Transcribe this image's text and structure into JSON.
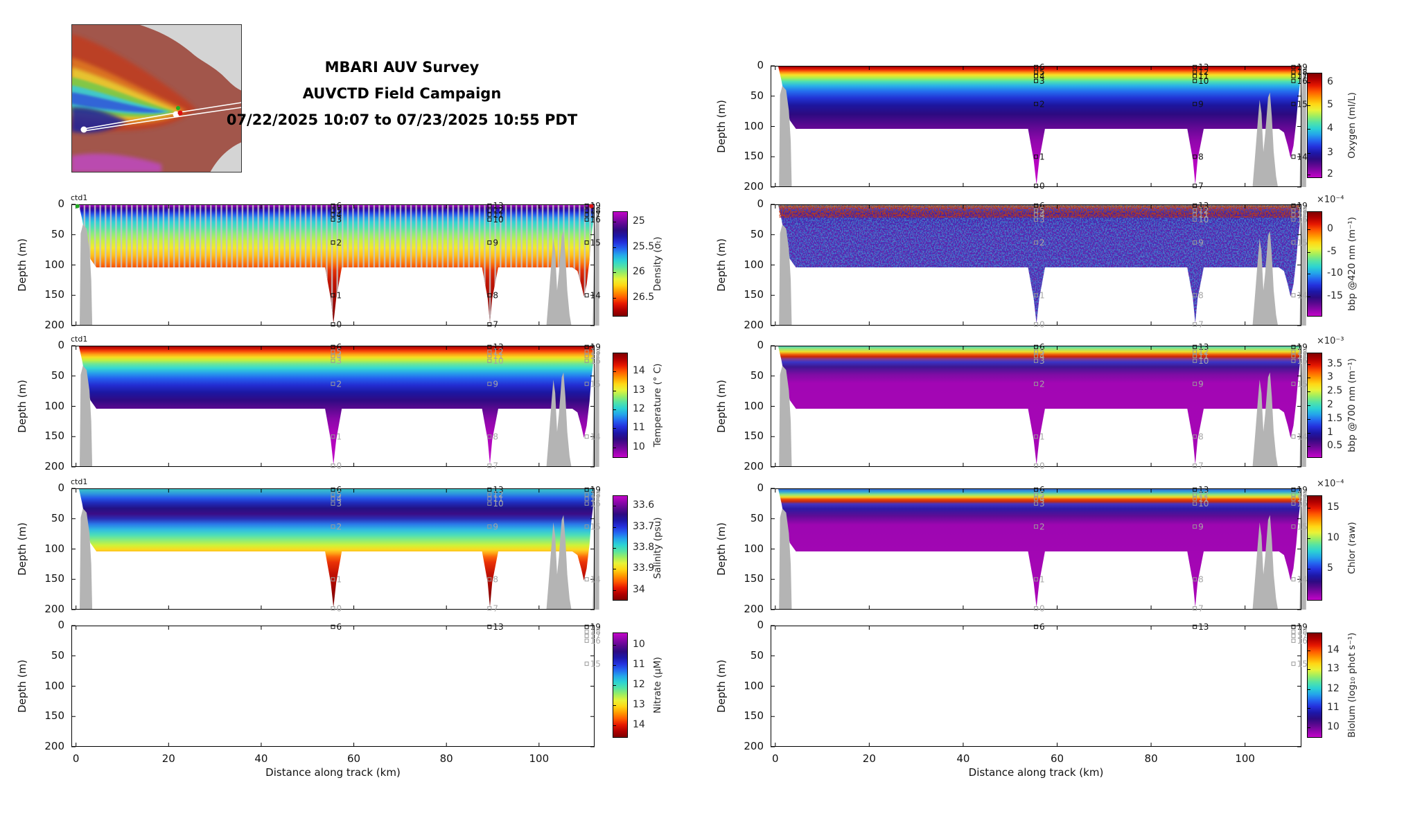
{
  "header": {
    "line1": "MBARI AUV Survey",
    "line2": "AUVCTD Field Campaign",
    "line3": "07/22/2025 10:07 to 07/23/2025 10:55 PDT"
  },
  "annotations": {
    "ctd_label": "ctd1"
  },
  "colors": {
    "background": "#ffffff",
    "seafloor": "#b4b4b4",
    "marker_dark": "#111111",
    "marker_gray": "#a6a6a6",
    "track": "#ffffff",
    "map_sea": "#a2564b",
    "map_land": "#d4d4d4",
    "colormap": [
      "#7f0000",
      "#b30000",
      "#e71800",
      "#ff5a00",
      "#ff9b00",
      "#ffd714",
      "#e8f338",
      "#9cee62",
      "#55e3a4",
      "#2cd3d3",
      "#24a5ea",
      "#2465f0",
      "#2430dc",
      "#1d17a8",
      "#2d0a81",
      "#5c0890",
      "#8e06ab",
      "#c304c9"
    ]
  },
  "chart_data": {
    "type": "heatmap",
    "x_axis": {
      "label": "Distance along track (km)",
      "ticks": [
        0,
        20,
        40,
        60,
        80,
        100
      ],
      "range": [
        -1,
        112
      ]
    },
    "y_axis": {
      "label": "Depth (m)",
      "ticks": [
        0,
        50,
        100,
        150,
        200
      ],
      "range": [
        0,
        200
      ]
    },
    "section_outline": [
      [
        0.6,
        0
      ],
      [
        111.8,
        0
      ],
      [
        111.8,
        22
      ],
      [
        111.3,
        55
      ],
      [
        110.9,
        92
      ],
      [
        110.3,
        132
      ],
      [
        109.7,
        152
      ],
      [
        109.1,
        132
      ],
      [
        108.3,
        110
      ],
      [
        107.2,
        104
      ],
      [
        91.2,
        104
      ],
      [
        89.9,
        155
      ],
      [
        89.4,
        196
      ],
      [
        88.9,
        155
      ],
      [
        87.7,
        104
      ],
      [
        57.4,
        104
      ],
      [
        56.2,
        155
      ],
      [
        55.6,
        196
      ],
      [
        55.0,
        155
      ],
      [
        53.8,
        104
      ],
      [
        4.4,
        104
      ],
      [
        3.1,
        90
      ],
      [
        2.1,
        58
      ],
      [
        1.3,
        24
      ],
      [
        0.6,
        0
      ]
    ],
    "seafloor": [
      [
        [
          0.8,
          200
        ],
        [
          1.0,
          48
        ],
        [
          1.5,
          33
        ],
        [
          2.3,
          40
        ],
        [
          2.9,
          74
        ],
        [
          3.3,
          125
        ],
        [
          3.5,
          200
        ]
      ],
      [
        [
          101.6,
          200
        ],
        [
          102.1,
          152
        ],
        [
          102.7,
          92
        ],
        [
          103.1,
          56
        ],
        [
          103.5,
          78
        ],
        [
          103.9,
          142
        ],
        [
          104.3,
          112
        ],
        [
          104.9,
          52
        ],
        [
          105.3,
          44
        ],
        [
          105.7,
          84
        ],
        [
          106.1,
          142
        ],
        [
          106.6,
          182
        ],
        [
          107.0,
          200
        ]
      ],
      [
        [
          111.6,
          200
        ],
        [
          111.8,
          120
        ],
        [
          112.0,
          55
        ],
        [
          112.3,
          16
        ],
        [
          112.7,
          8
        ],
        [
          113,
          9
        ],
        [
          113,
          200
        ]
      ]
    ],
    "casts": [
      {
        "km": 55.5,
        "markers": [
          [
            "6",
            2
          ],
          [
            "5",
            10
          ],
          [
            "4",
            17
          ],
          [
            "3",
            25
          ],
          [
            "2",
            63
          ],
          [
            "1",
            150
          ],
          [
            "0",
            198
          ]
        ]
      },
      {
        "km": 89.3,
        "markers": [
          [
            "13",
            2
          ],
          [
            "12",
            10
          ],
          [
            "11",
            17
          ],
          [
            "10",
            25
          ],
          [
            "9",
            63
          ],
          [
            "8",
            150
          ],
          [
            "7",
            198
          ]
        ]
      },
      {
        "km": 110.3,
        "markers": [
          [
            "19",
            2
          ],
          [
            "18",
            10
          ],
          [
            "17",
            17
          ],
          [
            "16",
            25
          ],
          [
            "15",
            63
          ],
          [
            "14",
            150
          ]
        ]
      }
    ],
    "panels": [
      {
        "id": "oxygen",
        "name": "Oxygen",
        "column": "right",
        "row": 0,
        "empty": false,
        "ctd": false,
        "dark_markers": true,
        "overlays": [],
        "colorbar_label": "Oxygen (ml/L)",
        "colorbar_exp": "",
        "colorbar_reversed": false,
        "colorbar_ticks": [
          {
            "label": "6",
            "pos": 9
          },
          {
            "label": "5",
            "pos": 31
          },
          {
            "label": "4",
            "pos": 53
          },
          {
            "label": "3",
            "pos": 76
          },
          {
            "label": "2",
            "pos": 97
          }
        ],
        "profile": [
          [
            0,
            "#860000"
          ],
          [
            0.015,
            "#bb0202"
          ],
          [
            0.035,
            "#f03307"
          ],
          [
            0.055,
            "#fe9413"
          ],
          [
            0.075,
            "#fbe026"
          ],
          [
            0.1,
            "#aeef4e"
          ],
          [
            0.13,
            "#4ce0b3"
          ],
          [
            0.165,
            "#29b2e7"
          ],
          [
            0.21,
            "#246eee"
          ],
          [
            0.265,
            "#2233d5"
          ],
          [
            0.325,
            "#1c169e"
          ],
          [
            0.4,
            "#2d0a80"
          ],
          [
            0.5,
            "#5e0992"
          ],
          [
            0.62,
            "#9007ac"
          ],
          [
            0.78,
            "#b305bf"
          ],
          [
            1,
            "#c505c9"
          ]
        ]
      },
      {
        "id": "density",
        "name": "Density",
        "column": "left",
        "row": 1,
        "empty": false,
        "ctd": true,
        "dark_markers": true,
        "overlays": [
          "comb"
        ],
        "colorbar_label": "Density (σₜ)",
        "colorbar_exp": "",
        "colorbar_reversed": true,
        "colorbar_ticks": [
          {
            "label": "25",
            "pos": 10
          },
          {
            "label": "25.5",
            "pos": 34
          },
          {
            "label": "26",
            "pos": 58
          },
          {
            "label": "26.5",
            "pos": 82
          }
        ],
        "dots": [
          {
            "km": 0.3,
            "m": 3,
            "color": "#22aa22"
          },
          {
            "km": 111.3,
            "m": 3,
            "color": "#dd1111"
          }
        ],
        "profile": [
          [
            0,
            "#c705c9"
          ],
          [
            0.012,
            "#9b05c0"
          ],
          [
            0.028,
            "#4b0790"
          ],
          [
            0.05,
            "#2314b6"
          ],
          [
            0.08,
            "#2453ea"
          ],
          [
            0.11,
            "#279ae8"
          ],
          [
            0.145,
            "#2fd0d8"
          ],
          [
            0.19,
            "#4fe2b0"
          ],
          [
            0.24,
            "#8aec7c"
          ],
          [
            0.3,
            "#c6f243"
          ],
          [
            0.36,
            "#f7e928"
          ],
          [
            0.42,
            "#ffc01c"
          ],
          [
            0.47,
            "#fe8c10"
          ],
          [
            0.51,
            "#f85c08"
          ],
          [
            0.545,
            "#e43206"
          ],
          [
            0.62,
            "#c61804"
          ],
          [
            0.78,
            "#a00802"
          ],
          [
            1,
            "#7c0000"
          ]
        ]
      },
      {
        "id": "bbp420",
        "name": "bbp @420 nm",
        "column": "right",
        "row": 1,
        "empty": false,
        "ctd": false,
        "dark_markers": false,
        "overlays": [
          "noise"
        ],
        "band": [
          [
            0.8,
            3
          ],
          [
            111.6,
            3
          ],
          [
            111.6,
            22
          ],
          [
            0.8,
            22
          ]
        ],
        "colorbar_label": "bbp @420 nm (m⁻¹)",
        "colorbar_exp": "×10⁻⁴",
        "colorbar_reversed": false,
        "colorbar_ticks": [
          {
            "label": "0",
            "pos": 17
          },
          {
            "label": "-5",
            "pos": 39
          },
          {
            "label": "-10",
            "pos": 59
          },
          {
            "label": "-15",
            "pos": 81
          }
        ],
        "profile": [
          [
            0,
            "#b03024"
          ],
          [
            0.018,
            "#c8742a"
          ],
          [
            0.033,
            "#7e4a9e"
          ],
          [
            0.05,
            "#3c3cbe"
          ],
          [
            0.075,
            "#4a1c9e"
          ],
          [
            0.12,
            "#5a1fa4"
          ],
          [
            0.22,
            "#6822a8"
          ],
          [
            1,
            "#6e23aa"
          ]
        ]
      },
      {
        "id": "temperature",
        "name": "Temperature",
        "column": "left",
        "row": 2,
        "empty": false,
        "ctd": true,
        "dark_markers": false,
        "overlays": [],
        "colorbar_label": "Temperature (° C)",
        "colorbar_exp": "",
        "colorbar_reversed": false,
        "colorbar_ticks": [
          {
            "label": "14",
            "pos": 18
          },
          {
            "label": "13",
            "pos": 36
          },
          {
            "label": "12",
            "pos": 54
          },
          {
            "label": "11",
            "pos": 72
          },
          {
            "label": "10",
            "pos": 90
          }
        ],
        "profile": [
          [
            0,
            "#8d0000"
          ],
          [
            0.02,
            "#c60d02"
          ],
          [
            0.045,
            "#f8470a"
          ],
          [
            0.07,
            "#fe9d14"
          ],
          [
            0.095,
            "#f9dc22"
          ],
          [
            0.12,
            "#c2f041"
          ],
          [
            0.15,
            "#6ee695"
          ],
          [
            0.185,
            "#36d9d2"
          ],
          [
            0.225,
            "#28a2ea"
          ],
          [
            0.27,
            "#2460ef"
          ],
          [
            0.325,
            "#232ed2"
          ],
          [
            0.385,
            "#1c17a2"
          ],
          [
            0.45,
            "#2f0a83"
          ],
          [
            0.52,
            "#5a0990"
          ],
          [
            0.6,
            "#8607a8"
          ],
          [
            0.72,
            "#ab06b9"
          ],
          [
            1,
            "#c205c7"
          ]
        ]
      },
      {
        "id": "bbp700",
        "name": "bbp @700 nm",
        "column": "right",
        "row": 2,
        "empty": false,
        "ctd": false,
        "dark_markers": false,
        "overlays": [],
        "colorbar_label": "bbp @700 nm (m⁻¹)",
        "colorbar_exp": "×10⁻³",
        "colorbar_reversed": false,
        "colorbar_ticks": [
          {
            "label": "3.5",
            "pos": 11
          },
          {
            "label": "3",
            "pos": 24
          },
          {
            "label": "2.5",
            "pos": 37
          },
          {
            "label": "2",
            "pos": 50
          },
          {
            "label": "1.5",
            "pos": 63
          },
          {
            "label": "1",
            "pos": 76
          },
          {
            "label": "0.5",
            "pos": 89
          }
        ],
        "profile": [
          [
            0,
            "#38c5c8"
          ],
          [
            0.025,
            "#93e67c"
          ],
          [
            0.05,
            "#eede2a"
          ],
          [
            0.072,
            "#f0620b"
          ],
          [
            0.09,
            "#cb2604"
          ],
          [
            0.11,
            "#833a8e"
          ],
          [
            0.135,
            "#3a35c6"
          ],
          [
            0.175,
            "#3d1691"
          ],
          [
            0.235,
            "#7c0da3"
          ],
          [
            0.31,
            "#a206b4"
          ],
          [
            1,
            "#a806b6"
          ]
        ]
      },
      {
        "id": "salinity",
        "name": "Salinity",
        "column": "left",
        "row": 3,
        "empty": false,
        "ctd": true,
        "dark_markers": false,
        "overlays": [],
        "colorbar_label": "Salinity (psu)",
        "colorbar_exp": "",
        "colorbar_reversed": true,
        "colorbar_ticks": [
          {
            "label": "33.6",
            "pos": 10
          },
          {
            "label": "33.7",
            "pos": 30
          },
          {
            "label": "33.8",
            "pos": 50
          },
          {
            "label": "33.9",
            "pos": 70
          },
          {
            "label": "34",
            "pos": 90
          }
        ],
        "profile": [
          [
            0,
            "#3fc9c4"
          ],
          [
            0.04,
            "#2e9ddc"
          ],
          [
            0.08,
            "#2557e9"
          ],
          [
            0.12,
            "#202bba"
          ],
          [
            0.165,
            "#221285"
          ],
          [
            0.21,
            "#3b0d86"
          ],
          [
            0.25,
            "#2a2db4"
          ],
          [
            0.295,
            "#2a78e9"
          ],
          [
            0.34,
            "#30bbe2"
          ],
          [
            0.385,
            "#4cdeb8"
          ],
          [
            0.43,
            "#90ed76"
          ],
          [
            0.47,
            "#d1f238"
          ],
          [
            0.505,
            "#fbda22"
          ],
          [
            0.535,
            "#fea416"
          ],
          [
            0.565,
            "#fb660b"
          ],
          [
            0.61,
            "#e93106"
          ],
          [
            0.7,
            "#c41203"
          ],
          [
            0.84,
            "#9a0401"
          ],
          [
            1,
            "#6f0000"
          ]
        ]
      },
      {
        "id": "chlor",
        "name": "Chlor",
        "column": "right",
        "row": 3,
        "empty": false,
        "ctd": false,
        "dark_markers": false,
        "overlays": [],
        "colorbar_label": "Chlor (raw)",
        "colorbar_exp": "×10⁻⁴",
        "colorbar_reversed": false,
        "colorbar_ticks": [
          {
            "label": "15",
            "pos": 12
          },
          {
            "label": "10",
            "pos": 41
          },
          {
            "label": "5",
            "pos": 70
          }
        ],
        "profile": [
          [
            0,
            "#3a55c8"
          ],
          [
            0.028,
            "#2fa6da"
          ],
          [
            0.052,
            "#93e67c"
          ],
          [
            0.072,
            "#f2d826"
          ],
          [
            0.09,
            "#ef4b08"
          ],
          [
            0.108,
            "#c42a10"
          ],
          [
            0.128,
            "#4534c2"
          ],
          [
            0.168,
            "#2c1ba5"
          ],
          [
            0.225,
            "#5c0d95"
          ],
          [
            0.3,
            "#9d06b1"
          ],
          [
            1,
            "#ab05b8"
          ]
        ]
      },
      {
        "id": "nitrate",
        "name": "Nitrate",
        "column": "left",
        "row": 4,
        "empty": true,
        "ctd": false,
        "dark_markers": false,
        "overlays": [],
        "colorbar_label": "Nitrate (μM)",
        "colorbar_exp": "",
        "colorbar_reversed": true,
        "colorbar_ticks": [
          {
            "label": "10",
            "pos": 12
          },
          {
            "label": "11",
            "pos": 31
          },
          {
            "label": "12",
            "pos": 50
          },
          {
            "label": "13",
            "pos": 69
          },
          {
            "label": "14",
            "pos": 88
          }
        ],
        "profile": []
      },
      {
        "id": "biolum",
        "name": "Biolum",
        "column": "right",
        "row": 4,
        "empty": true,
        "ctd": false,
        "dark_markers": false,
        "overlays": [],
        "colorbar_label": "Biolum (log₁₀ phot s⁻¹)",
        "colorbar_exp": "",
        "colorbar_reversed": false,
        "colorbar_ticks": [
          {
            "label": "14",
            "pos": 17
          },
          {
            "label": "13",
            "pos": 35
          },
          {
            "label": "12",
            "pos": 54
          },
          {
            "label": "11",
            "pos": 72
          },
          {
            "label": "10",
            "pos": 90
          }
        ],
        "profile": []
      }
    ]
  }
}
